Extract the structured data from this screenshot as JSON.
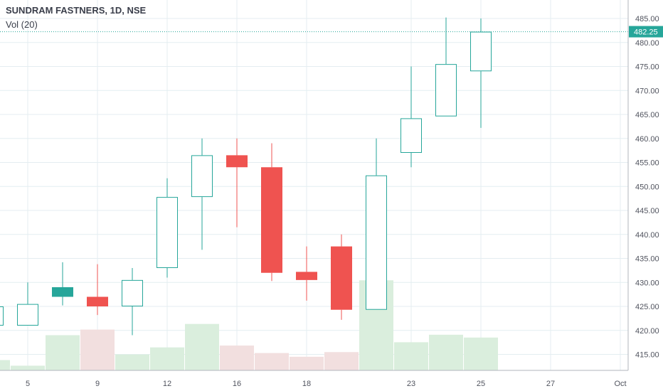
{
  "legend": {
    "symbol": "SUNDRAM FASTNERS, 1D, NSE",
    "indicator": "Vol (20)"
  },
  "colors": {
    "up": "#26a69a",
    "down": "#ef5350",
    "up_volume": "#daeedd",
    "down_volume": "#f2dfdf",
    "grid": "#e4edf1",
    "axis_text": "#50535e",
    "price_line": "#26a69a",
    "background": "#ffffff"
  },
  "chart_data": {
    "type": "candlestick",
    "title": "SUNDRAM FASTNERS, 1D, NSE",
    "indicator": "Vol (20)",
    "x_ticks": [
      "5",
      "9",
      "12",
      "16",
      "18",
      "23",
      "25",
      "27",
      "Oct"
    ],
    "y_ticks": [
      "415.00",
      "420.00",
      "425.00",
      "430.00",
      "435.00",
      "440.00",
      "445.00",
      "450.00",
      "455.00",
      "460.00",
      "465.00",
      "470.00",
      "475.00",
      "480.00",
      "485.00"
    ],
    "ylim": [
      411.5,
      487.5
    ],
    "last_price": "482.25",
    "last_price_value": 482.25,
    "grid": true,
    "candles": [
      {
        "slot": 0,
        "open": 421.0,
        "high": 427.0,
        "low": 421.0,
        "close": 425.0,
        "volume": 2.2,
        "hollow": true,
        "dir": "up"
      },
      {
        "slot": 1,
        "open": 421.0,
        "high": 430.0,
        "low": 421.0,
        "close": 425.5,
        "volume": 1.0,
        "hollow": true,
        "dir": "up"
      },
      {
        "slot": 2,
        "open": 427.0,
        "high": 434.2,
        "low": 425.2,
        "close": 429.0,
        "volume": 7.5,
        "hollow": false,
        "dir": "up"
      },
      {
        "slot": 3,
        "open": 427.0,
        "high": 433.8,
        "low": 423.2,
        "close": 425.0,
        "volume": 8.7,
        "hollow": false,
        "dir": "down"
      },
      {
        "slot": 4,
        "open": 425.0,
        "high": 433.0,
        "low": 419.0,
        "close": 430.5,
        "volume": 3.4,
        "hollow": true,
        "dir": "up"
      },
      {
        "slot": 5,
        "open": 433.0,
        "high": 451.7,
        "low": 431.0,
        "close": 447.8,
        "volume": 4.9,
        "hollow": true,
        "dir": "up"
      },
      {
        "slot": 6,
        "open": 447.8,
        "high": 460.0,
        "low": 436.8,
        "close": 456.5,
        "volume": 9.9,
        "hollow": true,
        "dir": "up"
      },
      {
        "slot": 7,
        "open": 456.5,
        "high": 460.0,
        "low": 441.5,
        "close": 454.0,
        "volume": 5.3,
        "hollow": false,
        "dir": "down"
      },
      {
        "slot": 8,
        "open": 454.0,
        "high": 459.0,
        "low": 430.3,
        "close": 432.0,
        "volume": 3.7,
        "hollow": false,
        "dir": "down"
      },
      {
        "slot": 9,
        "open": 432.2,
        "high": 437.5,
        "low": 426.2,
        "close": 430.5,
        "volume": 2.9,
        "hollow": false,
        "dir": "down"
      },
      {
        "slot": 10,
        "open": 437.5,
        "high": 440.0,
        "low": 422.2,
        "close": 424.3,
        "volume": 3.9,
        "hollow": false,
        "dir": "down"
      },
      {
        "slot": 11,
        "open": 424.3,
        "high": 460.0,
        "low": 424.3,
        "close": 452.3,
        "volume": 19.2,
        "hollow": true,
        "dir": "up"
      },
      {
        "slot": 12,
        "open": 457.0,
        "high": 475.0,
        "low": 454.0,
        "close": 464.2,
        "volume": 6.0,
        "hollow": true,
        "dir": "up"
      },
      {
        "slot": 13,
        "open": 464.6,
        "high": 485.2,
        "low": 464.6,
        "close": 475.5,
        "volume": 7.6,
        "hollow": true,
        "dir": "up"
      },
      {
        "slot": 14,
        "open": 474.0,
        "high": 485.0,
        "low": 462.2,
        "close": 482.25,
        "volume": 7.0,
        "hollow": true,
        "dir": "up"
      }
    ]
  }
}
